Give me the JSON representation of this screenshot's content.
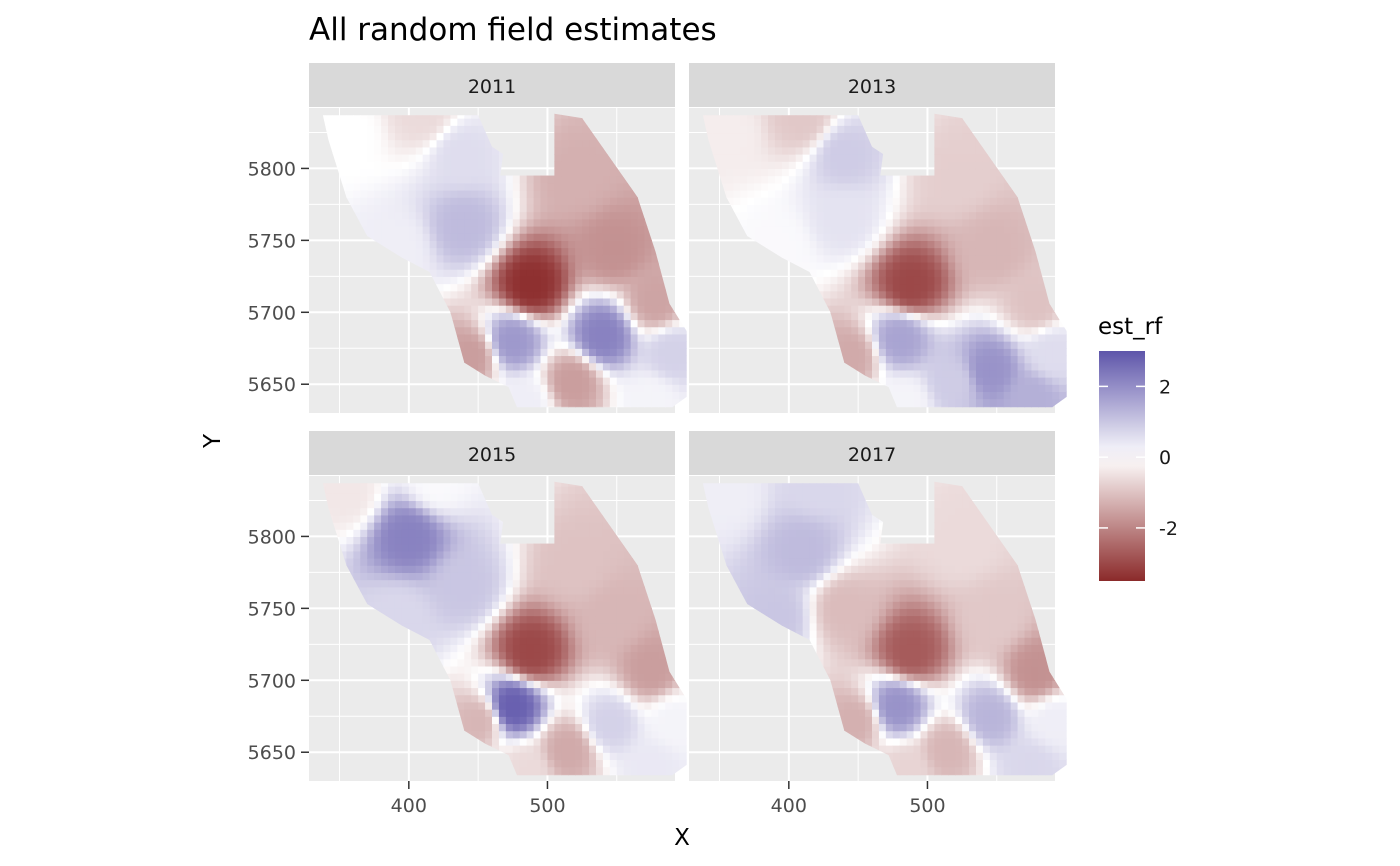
{
  "chart_data": {
    "type": "heatmap",
    "title": "All random field estimates",
    "xlabel": "X",
    "ylabel": "Y",
    "xlim": [
      328,
      592
    ],
    "ylim": [
      5630,
      5842
    ],
    "x_breaks": [
      400,
      500
    ],
    "x_tick_labels": [
      "400",
      "500"
    ],
    "y_breaks": [
      5650,
      5700,
      5750,
      5800
    ],
    "y_tick_labels": [
      "5650",
      "5700",
      "5750",
      "5800"
    ],
    "grid": true,
    "legend": {
      "title": "est_rf",
      "placement": "right",
      "range": [
        -3.5,
        3.0
      ],
      "breaks": [
        2,
        0,
        -2
      ],
      "break_labels": [
        "2",
        "0",
        "-2"
      ]
    },
    "colors": {
      "low": "#8b2a2a",
      "mid": "#ffffff",
      "high": "#5e55aa"
    },
    "region_outline": [
      [
        338,
        5837
      ],
      [
        450,
        5837
      ],
      [
        460,
        5815
      ],
      [
        468,
        5810
      ],
      [
        466,
        5795
      ],
      [
        505,
        5795
      ],
      [
        505,
        5838
      ],
      [
        525,
        5835
      ],
      [
        565,
        5780
      ],
      [
        578,
        5742
      ],
      [
        588,
        5706
      ],
      [
        601,
        5686
      ],
      [
        610,
        5671
      ],
      [
        617,
        5648
      ],
      [
        600,
        5641
      ],
      [
        590,
        5634
      ],
      [
        545,
        5634
      ],
      [
        510,
        5634
      ],
      [
        478,
        5634
      ],
      [
        472,
        5648
      ],
      [
        455,
        5656
      ],
      [
        440,
        5665
      ],
      [
        430,
        5700
      ],
      [
        415,
        5728
      ],
      [
        395,
        5738
      ],
      [
        370,
        5753
      ],
      [
        355,
        5780
      ],
      [
        342,
        5820
      ]
    ],
    "panels": [
      {
        "label": "2011",
        "field_nodes": [
          {
            "x": 488,
            "y": 5719,
            "value": -3.4
          },
          {
            "x": 520,
            "y": 5795,
            "value": -1.3
          },
          {
            "x": 438,
            "y": 5810,
            "value": 0.6
          },
          {
            "x": 440,
            "y": 5760,
            "value": 1.2
          },
          {
            "x": 392,
            "y": 5745,
            "value": 0.3
          },
          {
            "x": 355,
            "y": 5825,
            "value": 0.0
          },
          {
            "x": 410,
            "y": 5838,
            "value": -0.6
          },
          {
            "x": 548,
            "y": 5744,
            "value": -1.8
          },
          {
            "x": 578,
            "y": 5708,
            "value": -1.5
          },
          {
            "x": 475,
            "y": 5680,
            "value": 1.8
          },
          {
            "x": 540,
            "y": 5684,
            "value": 2.2
          },
          {
            "x": 590,
            "y": 5672,
            "value": 0.8
          },
          {
            "x": 518,
            "y": 5652,
            "value": -1.6
          },
          {
            "x": 445,
            "y": 5670,
            "value": -1.6
          },
          {
            "x": 575,
            "y": 5640,
            "value": 0.2
          },
          {
            "x": 485,
            "y": 5638,
            "value": 0.3
          }
        ]
      },
      {
        "label": "2013",
        "field_nodes": [
          {
            "x": 488,
            "y": 5719,
            "value": -3.0
          },
          {
            "x": 520,
            "y": 5795,
            "value": -0.8
          },
          {
            "x": 440,
            "y": 5810,
            "value": 0.9
          },
          {
            "x": 440,
            "y": 5765,
            "value": 0.5
          },
          {
            "x": 392,
            "y": 5745,
            "value": 0.1
          },
          {
            "x": 355,
            "y": 5825,
            "value": -0.3
          },
          {
            "x": 410,
            "y": 5835,
            "value": -0.9
          },
          {
            "x": 548,
            "y": 5744,
            "value": -1.2
          },
          {
            "x": 578,
            "y": 5706,
            "value": -1.0
          },
          {
            "x": 480,
            "y": 5682,
            "value": 1.6
          },
          {
            "x": 545,
            "y": 5660,
            "value": 1.9
          },
          {
            "x": 590,
            "y": 5672,
            "value": 0.6
          },
          {
            "x": 518,
            "y": 5652,
            "value": 0.9
          },
          {
            "x": 445,
            "y": 5670,
            "value": -1.4
          },
          {
            "x": 575,
            "y": 5640,
            "value": 1.4
          },
          {
            "x": 485,
            "y": 5638,
            "value": 0.2
          }
        ]
      },
      {
        "label": "2015",
        "field_nodes": [
          {
            "x": 488,
            "y": 5720,
            "value": -3.0
          },
          {
            "x": 520,
            "y": 5780,
            "value": -1.0
          },
          {
            "x": 400,
            "y": 5800,
            "value": 2.2
          },
          {
            "x": 440,
            "y": 5765,
            "value": 1.0
          },
          {
            "x": 392,
            "y": 5745,
            "value": 0.7
          },
          {
            "x": 355,
            "y": 5830,
            "value": -0.4
          },
          {
            "x": 420,
            "y": 5838,
            "value": 0.1
          },
          {
            "x": 548,
            "y": 5744,
            "value": -1.2
          },
          {
            "x": 575,
            "y": 5708,
            "value": -1.6
          },
          {
            "x": 475,
            "y": 5682,
            "value": 2.8
          },
          {
            "x": 545,
            "y": 5670,
            "value": 0.8
          },
          {
            "x": 592,
            "y": 5672,
            "value": 0.2
          },
          {
            "x": 515,
            "y": 5652,
            "value": -1.4
          },
          {
            "x": 450,
            "y": 5672,
            "value": -1.2
          },
          {
            "x": 575,
            "y": 5640,
            "value": 0.4
          },
          {
            "x": 485,
            "y": 5638,
            "value": -0.6
          }
        ]
      },
      {
        "label": "2017",
        "field_nodes": [
          {
            "x": 488,
            "y": 5720,
            "value": -2.7
          },
          {
            "x": 525,
            "y": 5795,
            "value": -0.6
          },
          {
            "x": 410,
            "y": 5790,
            "value": 1.2
          },
          {
            "x": 440,
            "y": 5750,
            "value": -1.1
          },
          {
            "x": 392,
            "y": 5745,
            "value": 1.0
          },
          {
            "x": 355,
            "y": 5830,
            "value": 0.3
          },
          {
            "x": 420,
            "y": 5838,
            "value": 0.7
          },
          {
            "x": 548,
            "y": 5744,
            "value": -0.9
          },
          {
            "x": 578,
            "y": 5706,
            "value": -1.8
          },
          {
            "x": 478,
            "y": 5682,
            "value": 1.9
          },
          {
            "x": 545,
            "y": 5675,
            "value": 1.3
          },
          {
            "x": 592,
            "y": 5672,
            "value": 0.3
          },
          {
            "x": 515,
            "y": 5652,
            "value": -1.2
          },
          {
            "x": 448,
            "y": 5672,
            "value": -1.3
          },
          {
            "x": 575,
            "y": 5640,
            "value": 0.7
          },
          {
            "x": 485,
            "y": 5638,
            "value": -0.7
          }
        ]
      }
    ]
  }
}
